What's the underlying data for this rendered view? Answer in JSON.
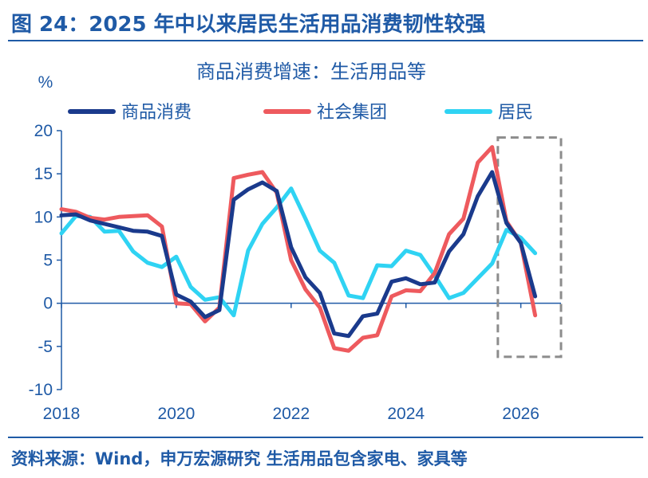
{
  "figure": {
    "title": "图 24：2025 年中以来居民生活用品消费韧性较强",
    "source": "资料来源：Wind，申万宏源研究 生活用品包含家电、家具等"
  },
  "chart_data": {
    "type": "line",
    "title": "商品消费增速：生活用品等",
    "ylabel": "%",
    "xlabel": "",
    "ylim": [
      -10,
      20
    ],
    "xlim": [
      2018,
      2026.7
    ],
    "yticks": [
      20,
      15,
      10,
      5,
      0,
      -5,
      -10
    ],
    "xticks": [
      "2018",
      "2020",
      "2022",
      "2024",
      "2026"
    ],
    "grid": false,
    "legend_position": "top",
    "highlight_box": {
      "x": [
        2025.6,
        2026.7
      ],
      "y": [
        -6.2,
        19.2
      ],
      "style": "dashed"
    },
    "series": [
      {
        "name": "商品消费",
        "color": "#1a3a8c",
        "points": [
          [
            2018.0,
            10.2
          ],
          [
            2018.25,
            10.3
          ],
          [
            2018.5,
            9.6
          ],
          [
            2018.75,
            9.2
          ],
          [
            2019.0,
            8.8
          ],
          [
            2019.25,
            8.4
          ],
          [
            2019.5,
            8.3
          ],
          [
            2019.75,
            7.8
          ],
          [
            2020.0,
            1.0
          ],
          [
            2020.25,
            0.2
          ],
          [
            2020.5,
            -1.6
          ],
          [
            2020.75,
            -0.8
          ],
          [
            2021.0,
            12.0
          ],
          [
            2021.25,
            13.2
          ],
          [
            2021.5,
            14.0
          ],
          [
            2021.75,
            13.0
          ],
          [
            2022.0,
            6.5
          ],
          [
            2022.25,
            3.0
          ],
          [
            2022.5,
            1.2
          ],
          [
            2022.75,
            -3.5
          ],
          [
            2023.0,
            -3.8
          ],
          [
            2023.25,
            -1.5
          ],
          [
            2023.5,
            -1.2
          ],
          [
            2023.75,
            2.5
          ],
          [
            2024.0,
            2.9
          ],
          [
            2024.25,
            2.2
          ],
          [
            2024.5,
            2.4
          ],
          [
            2024.75,
            6.0
          ],
          [
            2025.0,
            8.0
          ],
          [
            2025.25,
            12.4
          ],
          [
            2025.5,
            15.2
          ],
          [
            2025.75,
            9.3
          ],
          [
            2026.0,
            7.0
          ],
          [
            2026.25,
            0.8
          ]
        ]
      },
      {
        "name": "社会集团",
        "color": "#ee5a5e",
        "points": [
          [
            2018.0,
            10.9
          ],
          [
            2018.25,
            10.6
          ],
          [
            2018.5,
            9.9
          ],
          [
            2018.75,
            9.7
          ],
          [
            2019.0,
            10.0
          ],
          [
            2019.25,
            10.1
          ],
          [
            2019.5,
            10.2
          ],
          [
            2019.75,
            8.9
          ],
          [
            2020.0,
            0.0
          ],
          [
            2020.25,
            -0.1
          ],
          [
            2020.5,
            -2.1
          ],
          [
            2020.75,
            -0.5
          ],
          [
            2021.0,
            14.5
          ],
          [
            2021.25,
            14.9
          ],
          [
            2021.5,
            15.2
          ],
          [
            2021.75,
            12.8
          ],
          [
            2022.0,
            5.0
          ],
          [
            2022.25,
            1.6
          ],
          [
            2022.5,
            -0.5
          ],
          [
            2022.75,
            -5.2
          ],
          [
            2023.0,
            -5.5
          ],
          [
            2023.25,
            -4.0
          ],
          [
            2023.5,
            -3.7
          ],
          [
            2023.75,
            0.8
          ],
          [
            2024.0,
            1.5
          ],
          [
            2024.25,
            1.4
          ],
          [
            2024.5,
            3.5
          ],
          [
            2024.75,
            8.0
          ],
          [
            2025.0,
            9.8
          ],
          [
            2025.25,
            16.3
          ],
          [
            2025.5,
            18.1
          ],
          [
            2025.75,
            9.5
          ],
          [
            2026.0,
            7.0
          ],
          [
            2026.25,
            -1.4
          ]
        ]
      },
      {
        "name": "居民",
        "color": "#2fd3f3",
        "points": [
          [
            2018.0,
            8.1
          ],
          [
            2018.25,
            10.1
          ],
          [
            2018.5,
            10.0
          ],
          [
            2018.75,
            8.3
          ],
          [
            2019.0,
            8.4
          ],
          [
            2019.25,
            6.0
          ],
          [
            2019.5,
            4.7
          ],
          [
            2019.75,
            4.2
          ],
          [
            2020.0,
            5.4
          ],
          [
            2020.25,
            1.9
          ],
          [
            2020.5,
            0.4
          ],
          [
            2020.75,
            0.7
          ],
          [
            2021.0,
            -1.4
          ],
          [
            2021.25,
            6.1
          ],
          [
            2021.5,
            9.2
          ],
          [
            2021.75,
            11.1
          ],
          [
            2022.0,
            13.3
          ],
          [
            2022.25,
            9.8
          ],
          [
            2022.5,
            6.1
          ],
          [
            2022.75,
            4.7
          ],
          [
            2023.0,
            0.9
          ],
          [
            2023.25,
            0.6
          ],
          [
            2023.5,
            4.4
          ],
          [
            2023.75,
            4.3
          ],
          [
            2024.0,
            6.1
          ],
          [
            2024.25,
            5.6
          ],
          [
            2024.5,
            3.2
          ],
          [
            2024.75,
            0.6
          ],
          [
            2025.0,
            1.2
          ],
          [
            2025.25,
            2.9
          ],
          [
            2025.5,
            4.6
          ],
          [
            2025.75,
            8.5
          ],
          [
            2026.0,
            7.6
          ],
          [
            2026.25,
            5.8
          ]
        ]
      }
    ]
  }
}
